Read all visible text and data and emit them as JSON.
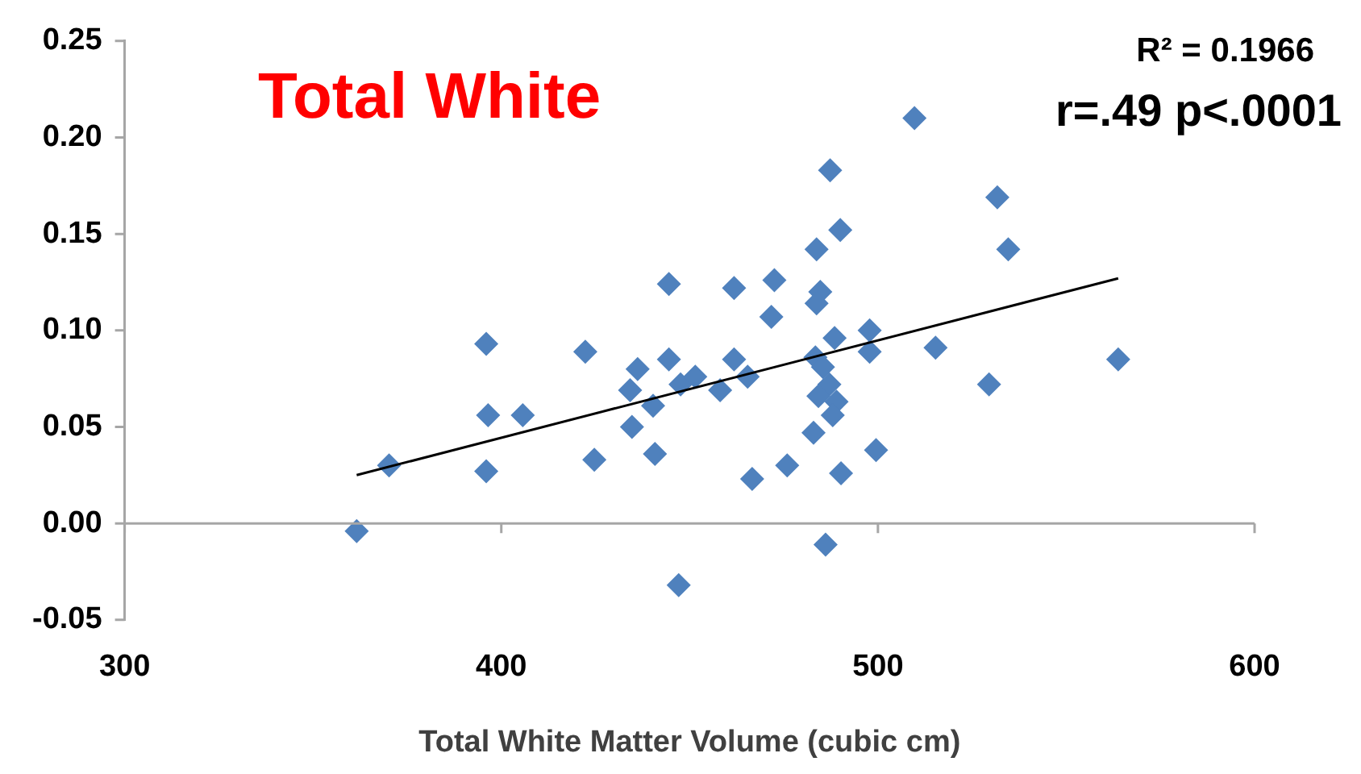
{
  "chart_data": {
    "type": "scatter",
    "title": "Total White",
    "xlabel": "Total White Matter Volume (cubic cm)",
    "annotations": [
      "R² = 0.1966",
      "r=.49 p<.0001"
    ],
    "xlim": [
      300,
      600
    ],
    "xticks": [
      300,
      400,
      500,
      600
    ],
    "ylim": [
      -0.05,
      0.25
    ],
    "yticks": [
      {
        "value": -0.05,
        "label": "-0.05"
      },
      {
        "value": 0,
        "label": "0.00"
      },
      {
        "value": 0.05,
        "label": "0.05"
      },
      {
        "value": 0.1,
        "label": "0.10"
      },
      {
        "value": 0.15,
        "label": "0.15"
      },
      {
        "value": 0.2,
        "label": "0.20"
      },
      {
        "value": 0.25,
        "label": "0.25"
      }
    ],
    "legend": false,
    "marker": "diamond",
    "series": [
      {
        "color": "#4f81bd",
        "x": [
          361.6,
          370.2,
          396,
          396.5,
          396,
          405.7,
          422.3,
          424.7,
          434.2,
          436.2,
          434.7,
          440.3,
          440.8,
          444.5,
          444.5,
          447.6,
          451.5,
          447.1,
          458.1,
          461.8,
          461.8,
          465.4,
          466.6,
          472.5,
          471.7,
          475.9,
          483.7,
          484.7,
          483.7,
          483.4,
          482.9,
          487.3,
          490,
          488.5,
          485.4,
          487.1,
          484.2,
          489,
          488,
          490.2,
          486.1,
          497.8,
          497.8,
          499.5,
          509.7,
          515.3,
          531.7,
          534.6,
          529.5,
          563.8
        ],
        "values": [
          -0.004,
          0.03,
          0.093,
          0.056,
          0.027,
          0.056,
          0.089,
          0.033,
          0.069,
          0.08,
          0.05,
          0.061,
          0.036,
          0.124,
          0.085,
          0.072,
          0.076,
          -0.032,
          0.069,
          0.122,
          0.085,
          0.076,
          0.023,
          0.126,
          0.107,
          0.03,
          0.142,
          0.12,
          0.114,
          0.086,
          0.047,
          0.183,
          0.152,
          0.096,
          0.081,
          0.072,
          0.066,
          0.063,
          0.056,
          0.026,
          -0.011,
          0.1,
          0.089,
          0.038,
          0.21,
          0.091,
          0.169,
          0.142,
          0.072,
          0.085
        ]
      },
      {
        "type": "line",
        "marker": "none",
        "color": "#000000",
        "x": [
          361.6,
          563.8
        ],
        "values": [
          0.025,
          0.127
        ]
      }
    ]
  }
}
